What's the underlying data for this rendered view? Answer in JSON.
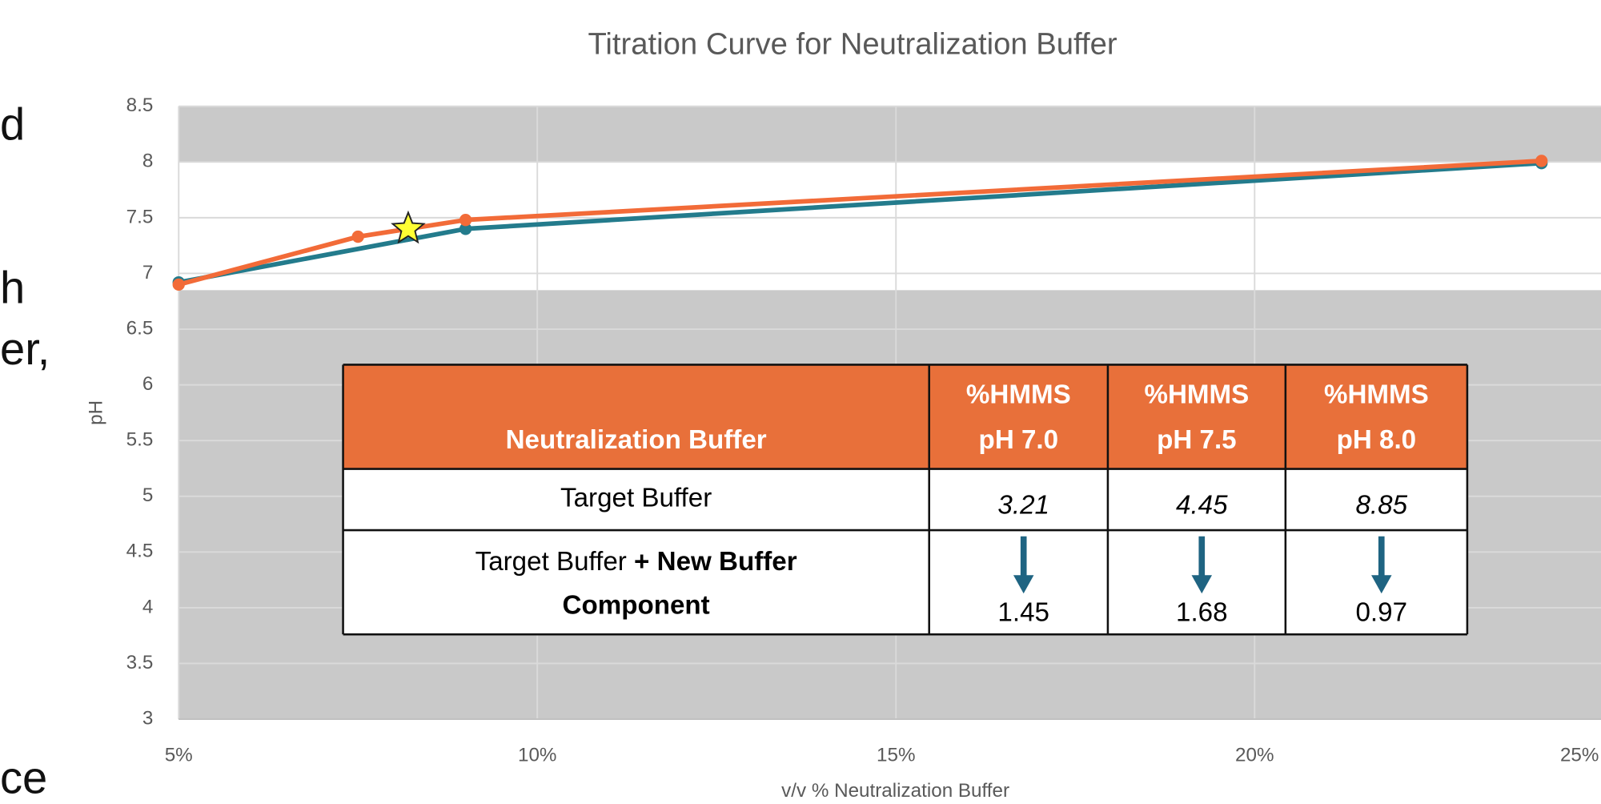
{
  "chart_data": {
    "type": "line",
    "title": "Titration Curve for Neutralization Buffer",
    "x_label": "v/v % Neutralization Buffer",
    "y_label": "pH",
    "xlim": [
      5,
      25
    ],
    "xticks": [
      {
        "value": 5,
        "label": "5%"
      },
      {
        "value": 10,
        "label": "10%"
      },
      {
        "value": 15,
        "label": "15%"
      },
      {
        "value": 20,
        "label": "20%"
      },
      {
        "value": 25,
        "label": "25%"
      }
    ],
    "ylim": [
      3,
      8.5
    ],
    "yticks": [
      3,
      3.5,
      4,
      4.5,
      5,
      5.5,
      6,
      6.5,
      7,
      7.5,
      8,
      8.5
    ],
    "grid": true,
    "background_color": "#c9c9c9",
    "highlight_band": {
      "range": [
        6.85,
        8
      ],
      "color": "#ffffff"
    },
    "series": [
      {
        "color": "#237b8c",
        "x": [
          5,
          9,
          24
        ],
        "values": [
          6.92,
          7.4,
          7.99
        ]
      },
      {
        "color": "#f26b38",
        "x": [
          5,
          7.5,
          9,
          24
        ],
        "values": [
          6.9,
          7.33,
          7.48,
          8.01
        ]
      }
    ],
    "star_marker": {
      "x": 8.2,
      "y": 7.4,
      "color": "#ffff33"
    }
  },
  "table": {
    "header_color": "#e8703a",
    "header": [
      [
        "Neutralization Buffer"
      ],
      [
        "%HMMS",
        "pH 7.0"
      ],
      [
        "%HMMS",
        "pH 7.5"
      ],
      [
        "%HMMS",
        "pH 8.0"
      ]
    ],
    "rows": [
      {
        "label": [
          {
            "text": "Target Buffer",
            "bold": false
          }
        ],
        "values": [
          "3.21",
          "4.45",
          "8.85"
        ]
      },
      {
        "label": [
          {
            "text": "Target Buffer ",
            "bold": false
          },
          {
            "text": "+ New Buffer",
            "bold": true
          },
          {
            "text": "Component",
            "bold": true
          }
        ],
        "values": [
          "1.45",
          "1.68",
          "0.97"
        ],
        "arrow_color": "#1f6482"
      }
    ]
  },
  "side_text": [
    "d",
    "h",
    "er,",
    "ce"
  ]
}
